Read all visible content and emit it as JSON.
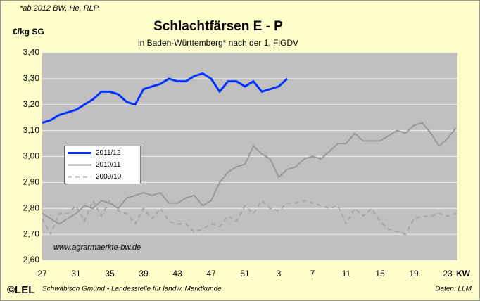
{
  "chart_data": {
    "type": "line",
    "note": "*ab 2012 BW, He, RLP",
    "ylabel": "€/kg SG",
    "title": "Schlachtfärsen E - P",
    "subtitle": "in Baden-Württemberg* nach der 1. FlGDV",
    "xlabel": "KW",
    "watermark": "www.agrarmaerkte-bw.de",
    "logo": "©LEL",
    "footer": "Schwäbisch Gmünd • Landesstelle für landw. Marktkunde",
    "source": "Daten: LLM",
    "categories": [
      "27",
      null,
      null,
      null,
      "31",
      null,
      null,
      null,
      "35",
      null,
      null,
      null,
      "39",
      null,
      null,
      null,
      "43",
      null,
      null,
      null,
      "47",
      null,
      null,
      null,
      "51",
      null,
      null,
      null,
      "3",
      null,
      null,
      null,
      "7",
      null,
      null,
      null,
      "11",
      null,
      null,
      null,
      "15",
      null,
      null,
      null,
      "19",
      null,
      null,
      null,
      "23",
      null
    ],
    "ylim": [
      2.6,
      3.4
    ],
    "yticks": [
      {
        "value": 2.6,
        "label": "2,60"
      },
      {
        "value": 2.7,
        "label": "2,70"
      },
      {
        "value": 2.8,
        "label": "2,80"
      },
      {
        "value": 2.9,
        "label": "2,90"
      },
      {
        "value": 3.0,
        "label": "3,00"
      },
      {
        "value": 3.1,
        "label": "3,10"
      },
      {
        "value": 3.2,
        "label": "3,20"
      },
      {
        "value": 3.3,
        "label": "3,30"
      },
      {
        "value": 3.4,
        "label": "3,40"
      }
    ],
    "grid": true,
    "legend": "center left",
    "series": [
      {
        "name": "2011/12",
        "color": "#0033ff",
        "width": 3,
        "dashed": false,
        "values": [
          3.13,
          3.14,
          3.16,
          3.17,
          3.18,
          3.2,
          3.22,
          3.25,
          3.25,
          3.24,
          3.21,
          3.2,
          3.26,
          3.27,
          3.28,
          3.3,
          3.29,
          3.29,
          3.31,
          3.32,
          3.3,
          3.25,
          3.29,
          3.29,
          3.27,
          3.29,
          3.25,
          3.26,
          3.27,
          3.3,
          null,
          null,
          null,
          null,
          null,
          null,
          null,
          null,
          null,
          null,
          null,
          null,
          null,
          null,
          null,
          null,
          null,
          null,
          null,
          null
        ]
      },
      {
        "name": "2010/11",
        "color": "#999999",
        "width": 2,
        "dashed": false,
        "values": [
          2.78,
          2.76,
          2.74,
          2.76,
          2.78,
          2.81,
          2.8,
          2.83,
          2.82,
          2.8,
          2.84,
          2.85,
          2.86,
          2.85,
          2.86,
          2.82,
          2.82,
          2.84,
          2.85,
          2.81,
          2.83,
          2.9,
          2.94,
          2.96,
          2.97,
          3.04,
          3.01,
          2.99,
          2.92,
          2.95,
          2.96,
          2.99,
          3.0,
          2.99,
          3.02,
          3.05,
          3.05,
          3.09,
          3.06,
          3.06,
          3.06,
          3.08,
          3.1,
          3.09,
          3.12,
          3.13,
          3.09,
          3.04,
          3.07,
          3.11
        ]
      },
      {
        "name": "2009/10",
        "color": "#a6a6a6",
        "width": 2,
        "dashed": true,
        "values": [
          2.76,
          2.7,
          2.78,
          2.78,
          2.81,
          2.75,
          2.83,
          2.77,
          2.83,
          2.79,
          2.78,
          2.74,
          2.8,
          2.76,
          2.8,
          2.75,
          2.74,
          2.74,
          2.71,
          2.72,
          2.74,
          2.73,
          2.77,
          2.75,
          2.81,
          2.78,
          2.83,
          2.8,
          2.79,
          2.82,
          2.82,
          2.83,
          2.82,
          2.81,
          2.8,
          2.81,
          2.74,
          2.8,
          2.77,
          2.8,
          2.75,
          2.72,
          2.71,
          2.7,
          2.76,
          2.77,
          2.77,
          2.78,
          2.77,
          2.78
        ]
      }
    ]
  }
}
